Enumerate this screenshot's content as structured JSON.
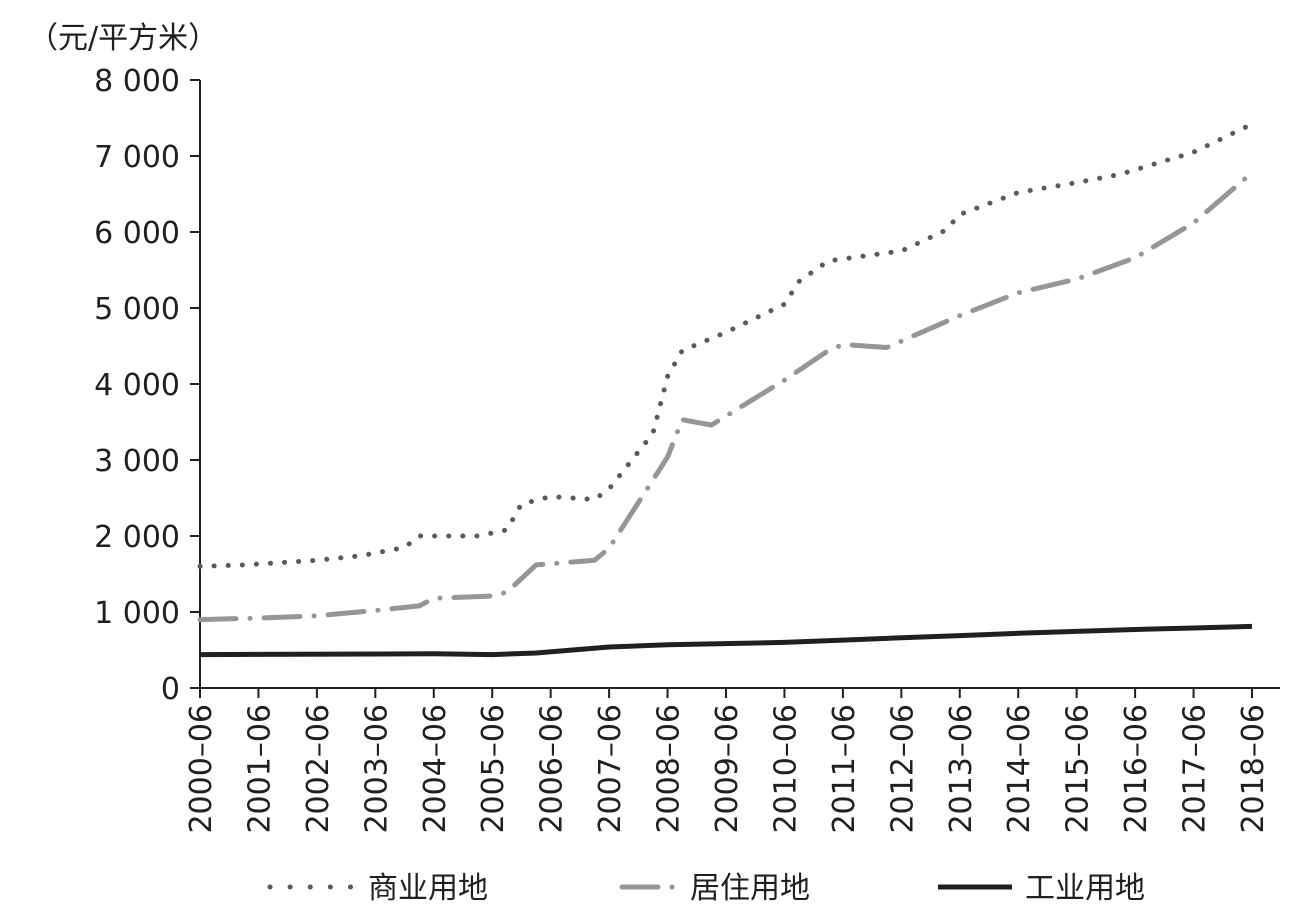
{
  "chart_data": {
    "type": "line",
    "ylabel": "（元/平方米）",
    "ylim": [
      0,
      8000
    ],
    "yticks": [
      0,
      1000,
      2000,
      3000,
      4000,
      5000,
      6000,
      7000,
      8000
    ],
    "ytick_labels": [
      "0",
      "1 000",
      "2 000",
      "3 000",
      "4 000",
      "5 000",
      "6 000",
      "7 000",
      "8 000"
    ],
    "x_range": [
      "2000-06",
      "2018-06"
    ],
    "categories": [
      "2000–06",
      "2001–06",
      "2002–06",
      "2003–06",
      "2004–06",
      "2005–06",
      "2006–06",
      "2007–06",
      "2008–06",
      "2009–06",
      "2010–06",
      "2011–06",
      "2012–06",
      "2013–06",
      "2014–06",
      "2015–06",
      "2016–06",
      "2017–06",
      "2018–06"
    ],
    "grid": false,
    "legend_position": "bottom",
    "series": [
      {
        "name": "商业用地",
        "style": "dotted",
        "color": "#5a5a5a",
        "points": [
          [
            "2000-06",
            1600
          ],
          [
            "2001-03",
            1620
          ],
          [
            "2002-06",
            1680
          ],
          [
            "2003-03",
            1740
          ],
          [
            "2003-12",
            1850
          ],
          [
            "2004-03",
            2000
          ],
          [
            "2005-03",
            2000
          ],
          [
            "2005-09",
            2080
          ],
          [
            "2005-12",
            2420
          ],
          [
            "2006-06",
            2520
          ],
          [
            "2007-03",
            2480
          ],
          [
            "2007-06",
            2620
          ],
          [
            "2008-03",
            3350
          ],
          [
            "2008-06",
            4100
          ],
          [
            "2008-09",
            4440
          ],
          [
            "2009-06",
            4680
          ],
          [
            "2010-06",
            5050
          ],
          [
            "2010-09",
            5350
          ],
          [
            "2011-03",
            5620
          ],
          [
            "2012-06",
            5750
          ],
          [
            "2013-03",
            6020
          ],
          [
            "2013-06",
            6230
          ],
          [
            "2014-06",
            6520
          ],
          [
            "2015-06",
            6650
          ],
          [
            "2016-03",
            6760
          ],
          [
            "2017-06",
            7050
          ],
          [
            "2018-06",
            7420
          ]
        ]
      },
      {
        "name": "居住用地",
        "style": "dash-dot",
        "color": "#969696",
        "points": [
          [
            "2000-06",
            900
          ],
          [
            "2001-06",
            920
          ],
          [
            "2002-06",
            950
          ],
          [
            "2003-06",
            1020
          ],
          [
            "2004-03",
            1080
          ],
          [
            "2004-06",
            1180
          ],
          [
            "2005-06",
            1210
          ],
          [
            "2005-09",
            1260
          ],
          [
            "2006-03",
            1620
          ],
          [
            "2007-03",
            1680
          ],
          [
            "2007-06",
            1840
          ],
          [
            "2008-06",
            3040
          ],
          [
            "2008-09",
            3530
          ],
          [
            "2009-03",
            3460
          ],
          [
            "2010-06",
            4050
          ],
          [
            "2011-03",
            4440
          ],
          [
            "2011-06",
            4520
          ],
          [
            "2012-03",
            4480
          ],
          [
            "2013-06",
            4900
          ],
          [
            "2014-06",
            5200
          ],
          [
            "2015-06",
            5380
          ],
          [
            "2016-06",
            5660
          ],
          [
            "2017-06",
            6120
          ],
          [
            "2018-06",
            6780
          ]
        ]
      },
      {
        "name": "工业用地",
        "style": "solid",
        "color": "#231f20",
        "points": [
          [
            "2000-06",
            440
          ],
          [
            "2004-06",
            450
          ],
          [
            "2005-06",
            440
          ],
          [
            "2006-03",
            460
          ],
          [
            "2007-06",
            540
          ],
          [
            "2008-06",
            570
          ],
          [
            "2010-06",
            600
          ],
          [
            "2011-06",
            630
          ],
          [
            "2012-06",
            660
          ],
          [
            "2013-06",
            690
          ],
          [
            "2014-06",
            720
          ],
          [
            "2015-06",
            745
          ],
          [
            "2016-06",
            770
          ],
          [
            "2017-06",
            790
          ],
          [
            "2018-06",
            810
          ]
        ]
      }
    ]
  }
}
